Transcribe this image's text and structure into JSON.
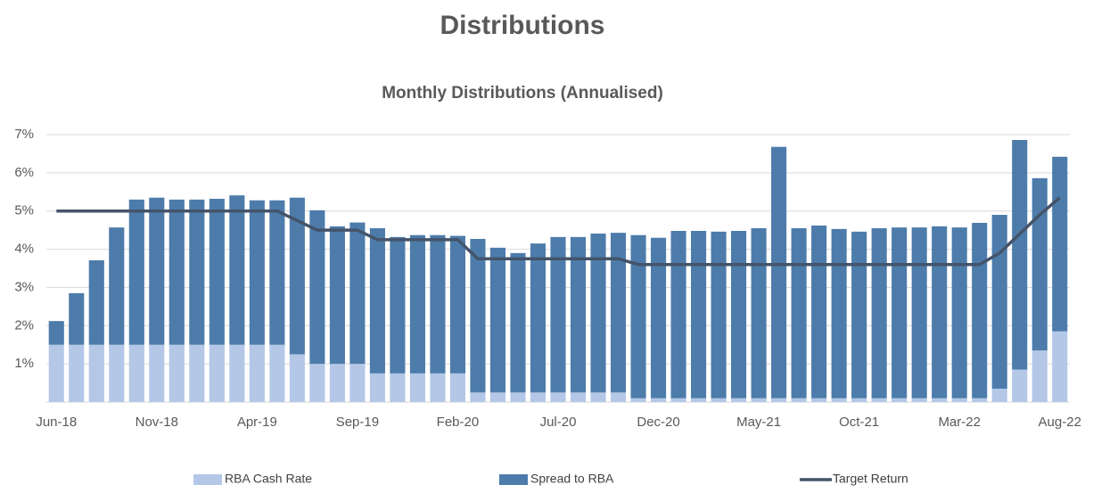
{
  "chart_data": {
    "type": "bar",
    "stacked": true,
    "title": "Distributions",
    "subtitle": "Monthly Distributions (Annualised)",
    "categories": [
      "Jun-18",
      null,
      null,
      null,
      null,
      "Nov-18",
      null,
      null,
      null,
      null,
      "Apr-19",
      null,
      null,
      null,
      null,
      "Sep-19",
      null,
      null,
      null,
      null,
      "Feb-20",
      null,
      null,
      null,
      null,
      "Jul-20",
      null,
      null,
      null,
      null,
      "Dec-20",
      null,
      null,
      null,
      null,
      "May-21",
      null,
      null,
      null,
      null,
      "Oct-21",
      null,
      null,
      null,
      null,
      "Mar-22",
      null,
      null,
      null,
      null,
      "Aug-22"
    ],
    "series": [
      {
        "name": "RBA Cash Rate",
        "type": "bar",
        "color": "#b4c7e7",
        "values": [
          1.5,
          1.5,
          1.5,
          1.5,
          1.5,
          1.5,
          1.5,
          1.5,
          1.5,
          1.5,
          1.5,
          1.5,
          1.25,
          1.0,
          1.0,
          1.0,
          0.75,
          0.75,
          0.75,
          0.75,
          0.75,
          0.25,
          0.25,
          0.25,
          0.25,
          0.25,
          0.25,
          0.25,
          0.25,
          0.1,
          0.1,
          0.1,
          0.1,
          0.1,
          0.1,
          0.1,
          0.1,
          0.1,
          0.1,
          0.1,
          0.1,
          0.1,
          0.1,
          0.1,
          0.1,
          0.1,
          0.1,
          0.35,
          0.85,
          1.35,
          1.85
        ]
      },
      {
        "name": "Spread to RBA",
        "type": "bar",
        "color": "#4d7cab",
        "values": [
          0.62,
          1.35,
          2.21,
          3.07,
          3.8,
          3.85,
          3.8,
          3.8,
          3.82,
          3.91,
          3.78,
          3.78,
          4.1,
          4.02,
          3.6,
          3.7,
          3.8,
          3.57,
          3.62,
          3.62,
          3.6,
          4.02,
          3.79,
          3.65,
          3.9,
          4.07,
          4.07,
          4.16,
          4.18,
          4.27,
          4.2,
          4.38,
          4.38,
          4.36,
          4.38,
          4.45,
          6.58,
          4.45,
          4.52,
          4.43,
          4.36,
          4.45,
          4.47,
          4.47,
          4.5,
          4.47,
          4.59,
          4.55,
          6.01,
          4.51,
          4.57
        ]
      },
      {
        "name": "Target Return",
        "type": "line",
        "color": "#44546a",
        "values": [
          5,
          5,
          5,
          5,
          5,
          5,
          5,
          5,
          5,
          5,
          5,
          5,
          4.75,
          4.5,
          4.5,
          4.5,
          4.25,
          4.25,
          4.25,
          4.25,
          4.25,
          3.75,
          3.75,
          3.75,
          3.75,
          3.75,
          3.75,
          3.75,
          3.75,
          3.6,
          3.6,
          3.6,
          3.6,
          3.6,
          3.6,
          3.6,
          3.6,
          3.6,
          3.6,
          3.6,
          3.6,
          3.6,
          3.6,
          3.6,
          3.6,
          3.6,
          3.6,
          3.9,
          4.4,
          4.9,
          5.35
        ]
      }
    ],
    "ylim": [
      0,
      7
    ],
    "yticks": [
      {
        "value": 1,
        "label": "1%"
      },
      {
        "value": 2,
        "label": "2%"
      },
      {
        "value": 3,
        "label": "3%"
      },
      {
        "value": 4,
        "label": "4%"
      },
      {
        "value": 5,
        "label": "5%"
      },
      {
        "value": 6,
        "label": "6%"
      },
      {
        "value": 7,
        "label": "7%"
      }
    ],
    "grid": true,
    "legend": "bottom"
  }
}
